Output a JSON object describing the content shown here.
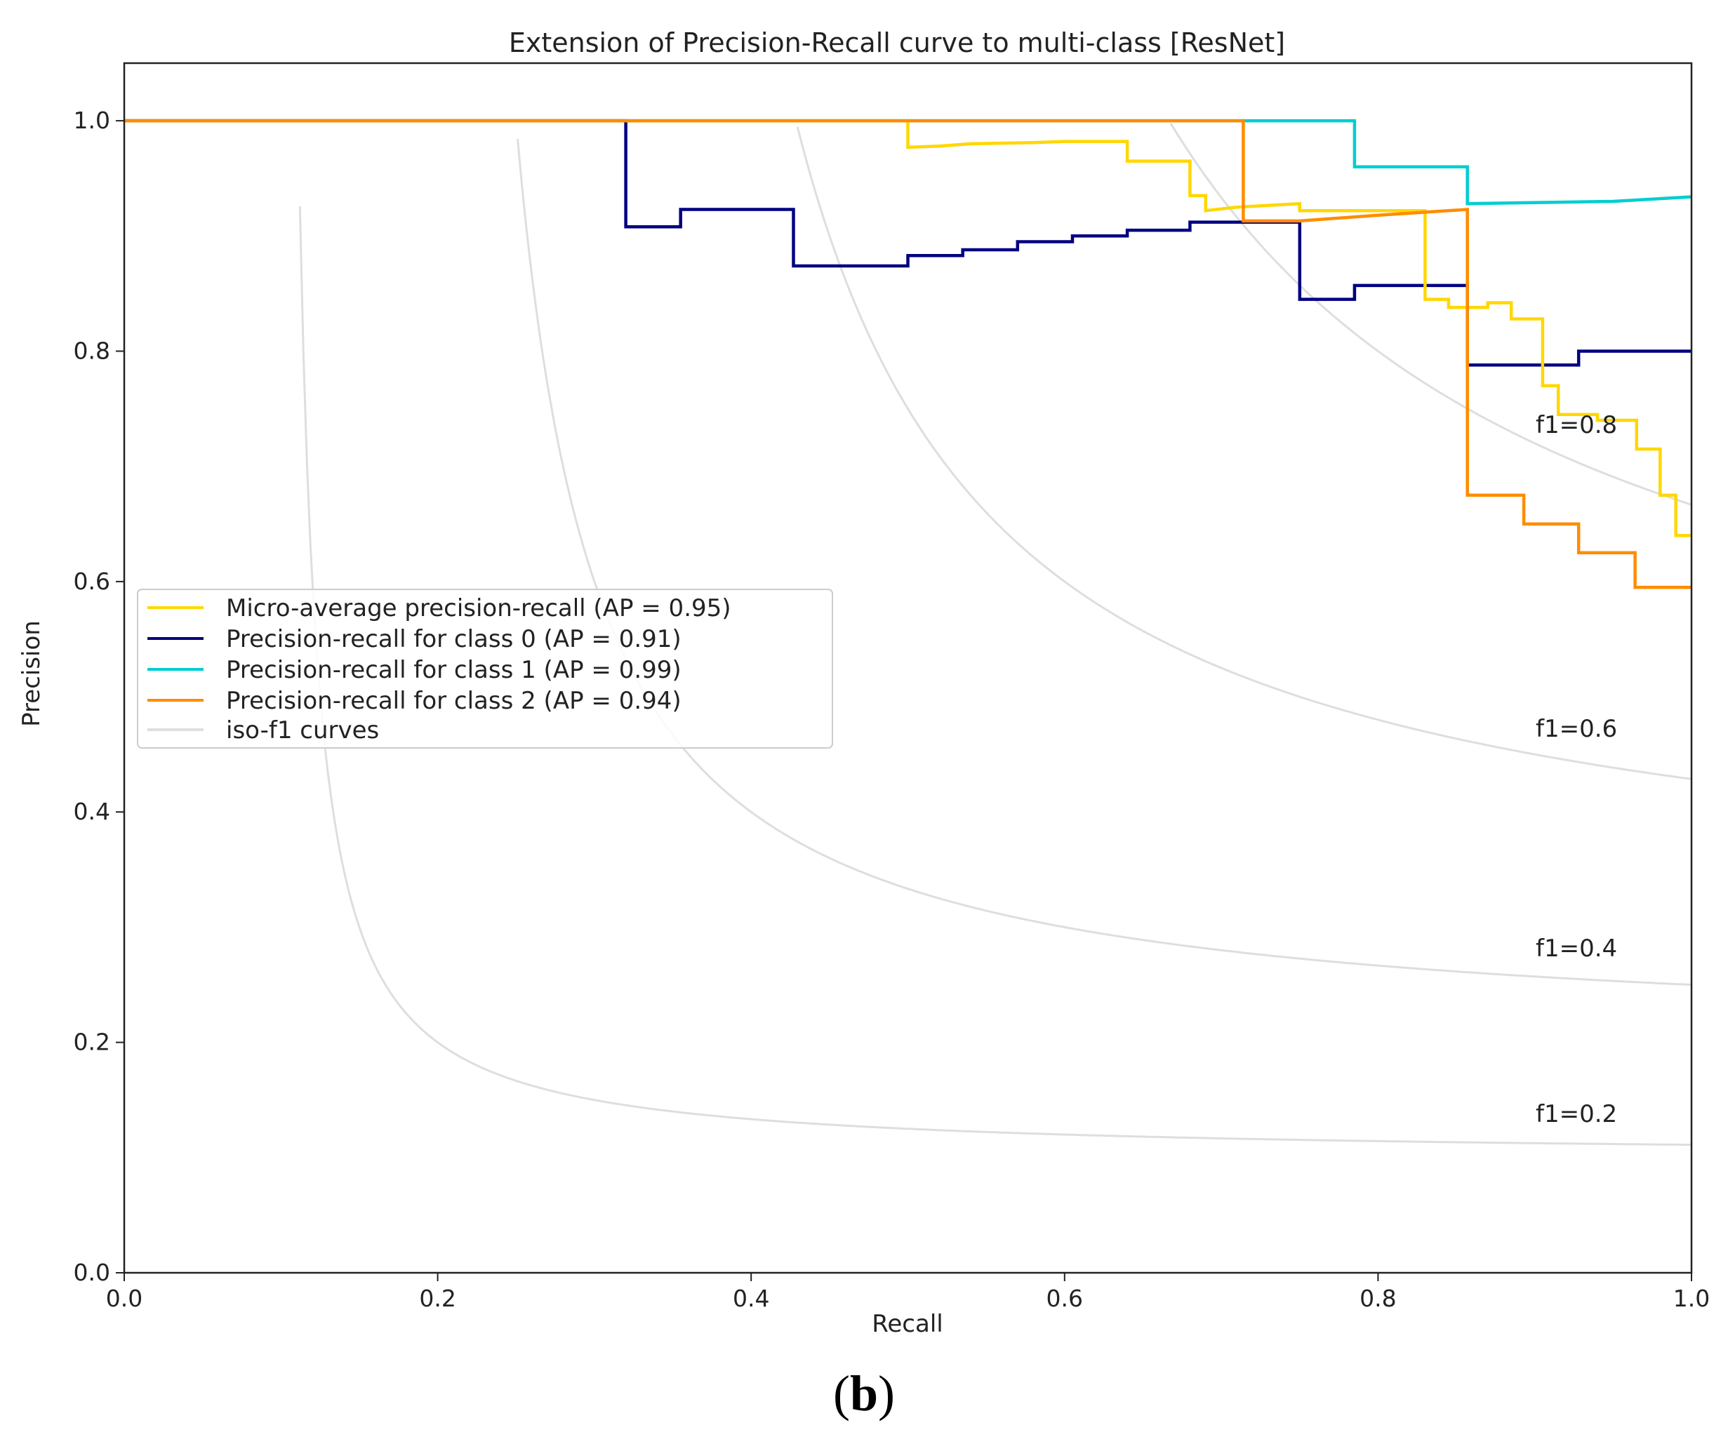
{
  "chart_data": {
    "type": "line",
    "title": "Extension of Precision-Recall curve to multi-class [ResNet]",
    "xlabel": "Recall",
    "ylabel": "Precision",
    "xlim": [
      0.0,
      1.0
    ],
    "ylim": [
      0.0,
      1.05
    ],
    "xticks": [
      "0.0",
      "0.2",
      "0.4",
      "0.6",
      "0.8",
      "1.0"
    ],
    "yticks": [
      "0.0",
      "0.2",
      "0.4",
      "0.6",
      "0.8",
      "1.0"
    ],
    "grid": false,
    "legend_position": "center-left",
    "series": [
      {
        "name": "Micro-average precision-recall (AP = 0.95)",
        "color": "#ffd700",
        "x": [
          0.0,
          0.5,
          0.5,
          0.52,
          0.54,
          0.58,
          0.6,
          0.64,
          0.64,
          0.66,
          0.68,
          0.68,
          0.69,
          0.69,
          0.71,
          0.75,
          0.75,
          0.83,
          0.83,
          0.845,
          0.845,
          0.87,
          0.87,
          0.885,
          0.885,
          0.905,
          0.905,
          0.915,
          0.915,
          0.94,
          0.94,
          0.965,
          0.965,
          0.98,
          0.98,
          0.99,
          0.99,
          1.0
        ],
        "y": [
          1.0,
          1.0,
          0.977,
          0.978,
          0.98,
          0.981,
          0.982,
          0.982,
          0.965,
          0.965,
          0.965,
          0.935,
          0.935,
          0.922,
          0.925,
          0.928,
          0.922,
          0.922,
          0.845,
          0.845,
          0.838,
          0.838,
          0.842,
          0.842,
          0.828,
          0.828,
          0.77,
          0.77,
          0.745,
          0.745,
          0.74,
          0.74,
          0.715,
          0.715,
          0.675,
          0.675,
          0.64,
          0.64
        ]
      },
      {
        "name": "Precision-recall for class 0 (AP = 0.91)",
        "color": "#000080",
        "x": [
          0.0,
          0.32,
          0.32,
          0.355,
          0.355,
          0.427,
          0.427,
          0.5,
          0.5,
          0.535,
          0.535,
          0.57,
          0.57,
          0.605,
          0.605,
          0.64,
          0.64,
          0.68,
          0.68,
          0.75,
          0.75,
          0.785,
          0.785,
          0.857,
          0.857,
          0.928,
          0.928,
          1.0
        ],
        "y": [
          1.0,
          1.0,
          0.908,
          0.908,
          0.923,
          0.923,
          0.874,
          0.874,
          0.883,
          0.883,
          0.888,
          0.888,
          0.895,
          0.895,
          0.9,
          0.9,
          0.905,
          0.905,
          0.912,
          0.912,
          0.845,
          0.845,
          0.857,
          0.857,
          0.788,
          0.788,
          0.8,
          0.8
        ]
      },
      {
        "name": "Precision-recall for class 1 (AP = 0.99)",
        "color": "#00ced1",
        "x": [
          0.0,
          0.785,
          0.785,
          0.857,
          0.857,
          0.9,
          0.95,
          1.0
        ],
        "y": [
          1.0,
          1.0,
          0.96,
          0.96,
          0.928,
          0.929,
          0.93,
          0.934
        ]
      },
      {
        "name": "Precision-recall for class 2 (AP = 0.94)",
        "color": "#ff8c00",
        "x": [
          0.0,
          0.714,
          0.714,
          0.75,
          0.8,
          0.857,
          0.857,
          0.893,
          0.893,
          0.928,
          0.928,
          0.964,
          0.964,
          1.0
        ],
        "y": [
          1.0,
          1.0,
          0.913,
          0.913,
          0.918,
          0.923,
          0.675,
          0.675,
          0.65,
          0.65,
          0.625,
          0.625,
          0.595,
          0.595
        ]
      },
      {
        "name": "iso-f1 curves",
        "color": "#dedede",
        "f1": [
          0.2,
          0.4,
          0.6,
          0.8
        ]
      }
    ],
    "annotations": [
      "f1=0.8",
      "f1=0.6",
      "f1=0.4",
      "f1=0.2"
    ]
  },
  "caption": {
    "open": "(",
    "letter": "b",
    "close": ")"
  }
}
